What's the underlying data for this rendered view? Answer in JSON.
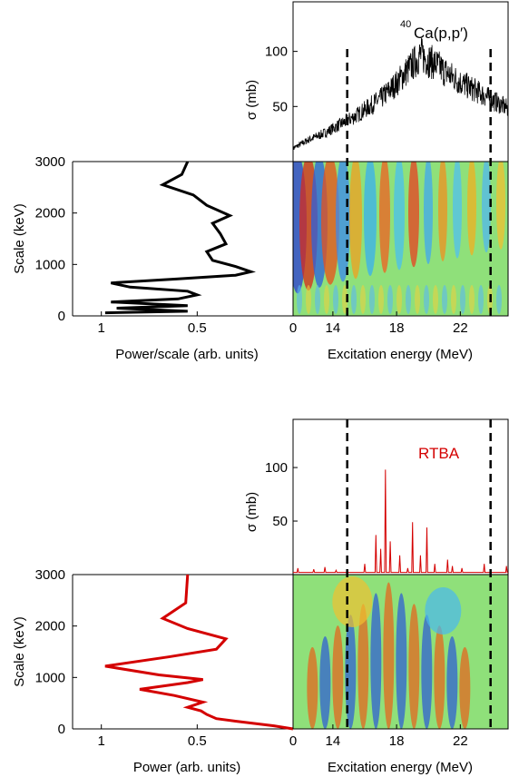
{
  "colors": {
    "experiment": "#000000",
    "theory": "#d40000",
    "axes": "#000000",
    "dashed": "#000000"
  },
  "chart_data": [
    {
      "panel": "top",
      "cross_section": {
        "type": "line",
        "label_mass": "40",
        "label_text": "Ca(p,p′)",
        "ylabel": "σ (mb)",
        "yticks": [
          50,
          100
        ],
        "xlim": [
          11.5,
          25
        ],
        "ylim": [
          0,
          145
        ],
        "x": [
          11.5,
          12,
          12.5,
          13,
          13.5,
          14,
          14.5,
          15,
          15.5,
          16,
          16.5,
          17,
          17.5,
          18,
          18.5,
          19,
          19.5,
          20,
          20.5,
          21,
          21.5,
          22,
          22.5,
          23,
          23.5,
          24,
          24.5,
          25
        ],
        "y": [
          12,
          16,
          20,
          23,
          26,
          30,
          34,
          38,
          42,
          47,
          52,
          57,
          64,
          71,
          80,
          88,
          97,
          92,
          88,
          82,
          77,
          72,
          68,
          64,
          60,
          56,
          52,
          48
        ]
      },
      "dashed_lines_x": [
        14.9,
        23.9
      ],
      "wavelet_map": {
        "type": "heatmap",
        "xlabel": "Excitation energy (MeV)",
        "xticks": [
          14,
          18,
          22
        ],
        "xlim": [
          11.5,
          25
        ],
        "ylim": [
          0,
          3000
        ]
      },
      "power_curve": {
        "type": "line",
        "xlabel": "Power/scale (arb. units)",
        "ylabel": "Scale (keV)",
        "xticks": [
          1,
          0.5,
          0
        ],
        "xlim": [
          1.15,
          0
        ],
        "yticks": [
          0,
          1000,
          2000,
          3000
        ],
        "ylim": [
          0,
          3000
        ],
        "points": [
          [
            0.98,
            60
          ],
          [
            0.55,
            90
          ],
          [
            0.92,
            150
          ],
          [
            0.55,
            200
          ],
          [
            0.95,
            270
          ],
          [
            0.6,
            330
          ],
          [
            0.5,
            410
          ],
          [
            0.55,
            480
          ],
          [
            0.85,
            560
          ],
          [
            0.95,
            640
          ],
          [
            0.6,
            720
          ],
          [
            0.3,
            790
          ],
          [
            0.22,
            860
          ],
          [
            0.3,
            960
          ],
          [
            0.42,
            1080
          ],
          [
            0.45,
            1250
          ],
          [
            0.35,
            1400
          ],
          [
            0.38,
            1600
          ],
          [
            0.42,
            1800
          ],
          [
            0.33,
            1950
          ],
          [
            0.45,
            2150
          ],
          [
            0.52,
            2350
          ],
          [
            0.68,
            2550
          ],
          [
            0.58,
            2750
          ],
          [
            0.55,
            3000
          ]
        ]
      }
    },
    {
      "panel": "bottom",
      "cross_section": {
        "type": "line",
        "label_text": "RTBA",
        "ylabel": "σ (mb)",
        "yticks": [
          50,
          100
        ],
        "xlim": [
          11.5,
          25
        ],
        "ylim": [
          0,
          145
        ],
        "x": [
          11.8,
          12.8,
          13.5,
          14.2,
          16.0,
          16.7,
          17.0,
          17.3,
          17.6,
          18.2,
          18.7,
          19.0,
          19.5,
          19.9,
          20.4,
          21.2,
          21.5,
          22.1,
          23.5,
          24.9
        ],
        "y": [
          6,
          5,
          7,
          4,
          10,
          37,
          24,
          98,
          31,
          18,
          6,
          49,
          18,
          44,
          10,
          14,
          8,
          6,
          10,
          8
        ]
      },
      "dashed_lines_x": [
        14.9,
        23.9
      ],
      "wavelet_map": {
        "type": "heatmap",
        "xlabel": "Excitation energy (MeV)",
        "xticks": [
          14,
          18,
          22
        ],
        "xlim": [
          11.5,
          25
        ],
        "ylim": [
          0,
          3000
        ]
      },
      "power_curve": {
        "type": "line",
        "xlabel": "Power (arb. units)",
        "ylabel": "Scale (keV)",
        "xticks": [
          1,
          0.5,
          0
        ],
        "xlim": [
          1.15,
          0
        ],
        "yticks": [
          0,
          1000,
          2000,
          3000
        ],
        "ylim": [
          0,
          3000
        ],
        "points": [
          [
            0.0,
            0
          ],
          [
            0.1,
            60
          ],
          [
            0.3,
            150
          ],
          [
            0.4,
            200
          ],
          [
            0.45,
            280
          ],
          [
            0.48,
            350
          ],
          [
            0.55,
            420
          ],
          [
            0.47,
            520
          ],
          [
            0.62,
            650
          ],
          [
            0.8,
            770
          ],
          [
            0.55,
            900
          ],
          [
            0.47,
            960
          ],
          [
            0.7,
            1050
          ],
          [
            0.98,
            1220
          ],
          [
            0.65,
            1400
          ],
          [
            0.4,
            1550
          ],
          [
            0.35,
            1750
          ],
          [
            0.55,
            1950
          ],
          [
            0.68,
            2150
          ],
          [
            0.56,
            2450
          ],
          [
            0.55,
            3000
          ]
        ]
      }
    }
  ]
}
